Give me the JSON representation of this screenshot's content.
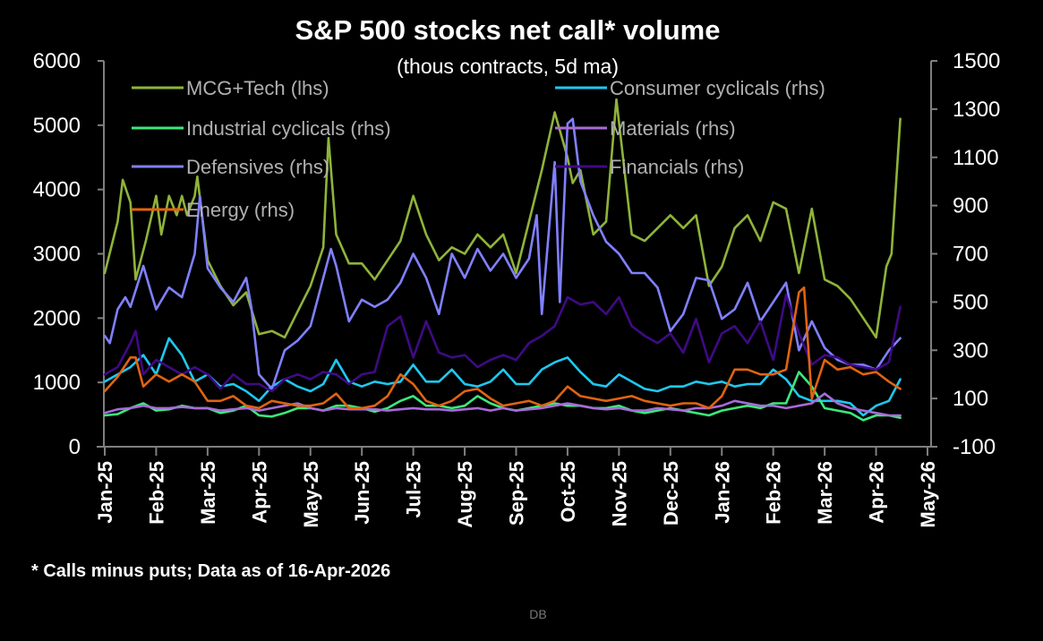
{
  "chart_data": {
    "type": "line",
    "title": "S&P 500 stocks net call* volume",
    "subtitle": "(thous contracts, 5d ma)",
    "footnote": "* Calls minus puts; Data as of 16-Apr-2026",
    "source": "DB",
    "x_unit": "months since Jan-25",
    "x_ticks": [
      "Jan-25",
      "Feb-25",
      "Mar-25",
      "Apr-25",
      "May-25",
      "Jun-25",
      "Jul-25",
      "Aug-25",
      "Sep-25",
      "Oct-25",
      "Nov-25",
      "Dec-25",
      "Jan-26",
      "Feb-26",
      "Mar-26",
      "Apr-26",
      "May-26"
    ],
    "xlim": [
      0,
      16
    ],
    "y_left": {
      "ylim": [
        0,
        6000
      ],
      "ticks": [
        "0",
        "1000",
        "2000",
        "3000",
        "4000",
        "5000",
        "6000"
      ],
      "tick_values": [
        0,
        1000,
        2000,
        3000,
        4000,
        5000,
        6000
      ]
    },
    "y_right": {
      "ylim": [
        -100,
        1500
      ],
      "ticks": [
        "-100",
        "100",
        "300",
        "500",
        "700",
        "900",
        "1100",
        "1300",
        "1500"
      ],
      "tick_values": [
        -100,
        100,
        300,
        500,
        700,
        900,
        1100,
        1300,
        1500
      ]
    },
    "grid": false,
    "legend_placement": "top-inside",
    "series": [
      {
        "name": "MCG+Tech (lhs)",
        "axis": "left",
        "color": "#8fb33a",
        "x": [
          0,
          0.25,
          0.35,
          0.5,
          0.6,
          0.8,
          1.0,
          1.1,
          1.25,
          1.4,
          1.5,
          1.6,
          1.75,
          1.8,
          2.0,
          2.25,
          2.5,
          2.75,
          3.0,
          3.25,
          3.5,
          3.75,
          4.0,
          4.25,
          4.35,
          4.5,
          4.75,
          5.0,
          5.25,
          5.5,
          5.75,
          6.0,
          6.25,
          6.5,
          6.75,
          7.0,
          7.25,
          7.5,
          7.75,
          8.0,
          8.25,
          8.5,
          8.75,
          9.0,
          9.1,
          9.25,
          9.5,
          9.75,
          9.95,
          10.25,
          10.5,
          10.75,
          11.0,
          11.25,
          11.5,
          11.75,
          12.0,
          12.25,
          12.5,
          12.75,
          13.0,
          13.25,
          13.5,
          13.75,
          14.0,
          14.25,
          14.5,
          14.75,
          15.0,
          15.2,
          15.3,
          15.47
        ],
        "values": [
          2700,
          3500,
          4150,
          3800,
          2600,
          3200,
          3900,
          3300,
          3900,
          3600,
          3900,
          3600,
          3900,
          4200,
          2900,
          2500,
          2200,
          2400,
          1750,
          1800,
          1700,
          2100,
          2500,
          3100,
          4800,
          3300,
          2850,
          2850,
          2600,
          2900,
          3200,
          3900,
          3300,
          2900,
          3100,
          3000,
          3300,
          3100,
          3300,
          2700,
          3500,
          4300,
          5200,
          4500,
          4100,
          4300,
          3300,
          3500,
          5400,
          3300,
          3200,
          3400,
          3600,
          3400,
          3600,
          2500,
          2800,
          3400,
          3600,
          3200,
          3800,
          3700,
          2700,
          3700,
          2600,
          2500,
          2300,
          2000,
          1700,
          2800,
          3000,
          5100
        ]
      },
      {
        "name": "Consumer cyclicals (rhs)",
        "axis": "right",
        "color": "#1ec8f0",
        "x": [
          0,
          0.25,
          0.5,
          0.75,
          1.0,
          1.25,
          1.5,
          1.75,
          2.0,
          2.25,
          2.5,
          2.75,
          3.0,
          3.25,
          3.5,
          3.75,
          4.0,
          4.25,
          4.5,
          4.75,
          5.0,
          5.25,
          5.5,
          5.75,
          6.0,
          6.25,
          6.5,
          6.75,
          7.0,
          7.25,
          7.5,
          7.75,
          8.0,
          8.25,
          8.5,
          8.75,
          9.0,
          9.25,
          9.5,
          9.75,
          10.0,
          10.25,
          10.5,
          10.75,
          11.0,
          11.25,
          11.5,
          11.75,
          12.0,
          12.25,
          12.5,
          12.75,
          13.0,
          13.25,
          13.5,
          13.75,
          14.0,
          14.25,
          14.5,
          14.75,
          15.0,
          15.25,
          15.47
        ],
        "values": [
          170,
          200,
          230,
          280,
          200,
          350,
          280,
          170,
          200,
          150,
          160,
          130,
          90,
          150,
          180,
          150,
          130,
          160,
          260,
          170,
          150,
          170,
          160,
          170,
          240,
          170,
          170,
          220,
          160,
          150,
          170,
          220,
          160,
          160,
          220,
          250,
          270,
          210,
          160,
          150,
          200,
          170,
          140,
          130,
          150,
          150,
          170,
          160,
          170,
          150,
          160,
          160,
          220,
          180,
          110,
          90,
          90,
          90,
          80,
          30,
          70,
          90,
          180
        ]
      },
      {
        "name": "Industrial cyclicals (rhs)",
        "axis": "right",
        "color": "#3ce87c",
        "x": [
          0,
          0.25,
          0.5,
          0.75,
          1.0,
          1.25,
          1.5,
          1.75,
          2.0,
          2.25,
          2.5,
          2.75,
          3.0,
          3.25,
          3.5,
          3.75,
          4.0,
          4.25,
          4.5,
          4.75,
          5.0,
          5.25,
          5.5,
          5.75,
          6.0,
          6.25,
          6.5,
          6.75,
          7.0,
          7.25,
          7.5,
          7.75,
          8.0,
          8.25,
          8.5,
          8.75,
          9.0,
          9.25,
          9.5,
          9.75,
          10.0,
          10.25,
          10.5,
          10.75,
          11.0,
          11.25,
          11.5,
          11.75,
          12.0,
          12.25,
          12.5,
          12.75,
          13.0,
          13.25,
          13.5,
          13.75,
          14.0,
          14.25,
          14.5,
          14.75,
          15.0,
          15.25,
          15.47
        ],
        "values": [
          30,
          35,
          60,
          80,
          50,
          55,
          70,
          60,
          60,
          40,
          50,
          70,
          30,
          25,
          40,
          60,
          60,
          50,
          70,
          70,
          60,
          45,
          60,
          90,
          110,
          70,
          70,
          60,
          70,
          110,
          80,
          60,
          50,
          60,
          70,
          80,
          70,
          70,
          60,
          60,
          70,
          50,
          40,
          50,
          60,
          50,
          40,
          30,
          50,
          60,
          70,
          60,
          80,
          80,
          210,
          150,
          60,
          50,
          40,
          10,
          30,
          30,
          20
        ]
      },
      {
        "name": "Materials (rhs)",
        "axis": "right",
        "color": "#a86bd8",
        "x": [
          0,
          0.25,
          0.5,
          0.75,
          1.0,
          1.25,
          1.5,
          1.75,
          2.0,
          2.25,
          2.5,
          2.75,
          3.0,
          3.25,
          3.5,
          3.75,
          4.0,
          4.25,
          4.5,
          4.75,
          5.0,
          5.25,
          5.5,
          5.75,
          6.0,
          6.25,
          6.5,
          6.75,
          7.0,
          7.25,
          7.5,
          7.75,
          8.0,
          8.25,
          8.5,
          8.75,
          9.0,
          9.25,
          9.5,
          9.75,
          10.0,
          10.25,
          10.5,
          10.75,
          11.0,
          11.25,
          11.5,
          11.75,
          12.0,
          12.25,
          12.5,
          12.75,
          13.0,
          13.25,
          13.5,
          13.75,
          14.0,
          14.25,
          14.5,
          14.75,
          15.0,
          15.25,
          15.47
        ],
        "values": [
          40,
          55,
          60,
          70,
          60,
          60,
          65,
          60,
          60,
          50,
          55,
          60,
          50,
          60,
          70,
          80,
          60,
          50,
          60,
          55,
          55,
          55,
          50,
          55,
          60,
          55,
          55,
          50,
          55,
          60,
          50,
          60,
          50,
          55,
          60,
          70,
          80,
          70,
          60,
          55,
          60,
          50,
          50,
          60,
          55,
          50,
          60,
          60,
          70,
          90,
          80,
          70,
          70,
          60,
          70,
          80,
          120,
          80,
          60,
          50,
          40,
          30,
          30
        ]
      },
      {
        "name": "Defensives (rhs)",
        "axis": "right",
        "color": "#8080ff",
        "x": [
          0,
          0.1,
          0.25,
          0.4,
          0.5,
          0.75,
          0.9,
          1.0,
          1.25,
          1.5,
          1.75,
          1.85,
          2.0,
          2.25,
          2.5,
          2.75,
          2.85,
          3.0,
          3.25,
          3.5,
          3.75,
          4.0,
          4.25,
          4.4,
          4.5,
          4.75,
          5.0,
          5.25,
          5.5,
          5.75,
          6.0,
          6.25,
          6.5,
          6.75,
          7.0,
          7.25,
          7.5,
          7.75,
          8.0,
          8.25,
          8.4,
          8.5,
          8.75,
          8.85,
          9.0,
          9.1,
          9.25,
          9.5,
          9.75,
          10.0,
          10.25,
          10.5,
          10.75,
          11.0,
          11.25,
          11.5,
          11.75,
          12.0,
          12.25,
          12.5,
          12.75,
          13.0,
          13.25,
          13.5,
          13.75,
          14.0,
          14.25,
          14.5,
          14.75,
          15.0,
          15.25,
          15.47
        ],
        "values": [
          360,
          330,
          470,
          520,
          480,
          650,
          540,
          470,
          560,
          520,
          700,
          940,
          640,
          560,
          500,
          600,
          480,
          200,
          140,
          300,
          340,
          400,
          600,
          720,
          650,
          420,
          510,
          480,
          510,
          580,
          700,
          600,
          450,
          700,
          600,
          720,
          630,
          700,
          600,
          680,
          860,
          450,
          1080,
          500,
          1240,
          1260,
          1000,
          860,
          750,
          700,
          620,
          620,
          560,
          380,
          450,
          600,
          590,
          430,
          470,
          580,
          420,
          500,
          580,
          300,
          420,
          310,
          260,
          240,
          240,
          220,
          300,
          350
        ]
      },
      {
        "name": "Financials (rhs)",
        "axis": "right",
        "color": "#3f0a85",
        "x": [
          0,
          0.25,
          0.5,
          0.6,
          0.75,
          1.0,
          1.25,
          1.5,
          1.75,
          2.0,
          2.25,
          2.5,
          2.75,
          3.0,
          3.25,
          3.5,
          3.75,
          4.0,
          4.25,
          4.5,
          4.75,
          5.0,
          5.25,
          5.5,
          5.75,
          6.0,
          6.25,
          6.5,
          6.75,
          7.0,
          7.25,
          7.5,
          7.75,
          8.0,
          8.25,
          8.5,
          8.75,
          9.0,
          9.25,
          9.5,
          9.75,
          10.0,
          10.25,
          10.5,
          10.75,
          11.0,
          11.25,
          11.5,
          11.75,
          12.0,
          12.25,
          12.5,
          12.75,
          13.0,
          13.25,
          13.5,
          13.75,
          14.0,
          14.25,
          14.5,
          14.75,
          15.0,
          15.25,
          15.47
        ],
        "values": [
          200,
          230,
          330,
          380,
          200,
          260,
          230,
          200,
          230,
          200,
          140,
          200,
          160,
          160,
          130,
          180,
          200,
          180,
          210,
          200,
          160,
          200,
          210,
          400,
          440,
          270,
          420,
          290,
          270,
          280,
          230,
          260,
          280,
          260,
          330,
          360,
          400,
          520,
          490,
          500,
          450,
          520,
          400,
          360,
          330,
          370,
          290,
          430,
          250,
          370,
          400,
          330,
          420,
          260,
          530,
          370,
          240,
          280,
          270,
          240,
          230,
          220,
          250,
          480
        ]
      },
      {
        "name": "Energy (rhs)",
        "axis": "right",
        "color": "#e06410",
        "x": [
          0,
          0.25,
          0.5,
          0.6,
          0.75,
          1.0,
          1.25,
          1.5,
          1.75,
          2.0,
          2.25,
          2.5,
          2.75,
          3.0,
          3.25,
          3.5,
          3.75,
          4.0,
          4.25,
          4.5,
          4.75,
          5.0,
          5.25,
          5.5,
          5.75,
          6.0,
          6.25,
          6.5,
          6.75,
          7.0,
          7.25,
          7.5,
          7.75,
          8.0,
          8.25,
          8.5,
          8.75,
          9.0,
          9.25,
          9.5,
          9.75,
          10.0,
          10.25,
          10.5,
          10.75,
          11.0,
          11.25,
          11.5,
          11.75,
          12.0,
          12.25,
          12.5,
          12.75,
          13.0,
          13.25,
          13.5,
          13.6,
          13.75,
          14.0,
          14.25,
          14.5,
          14.75,
          15.0,
          15.25,
          15.47
        ],
        "values": [
          130,
          190,
          270,
          270,
          150,
          200,
          170,
          200,
          170,
          90,
          90,
          110,
          70,
          60,
          90,
          80,
          70,
          70,
          80,
          120,
          60,
          60,
          70,
          110,
          200,
          160,
          90,
          70,
          90,
          130,
          140,
          100,
          70,
          80,
          90,
          70,
          90,
          150,
          110,
          100,
          90,
          100,
          110,
          90,
          80,
          70,
          80,
          80,
          60,
          110,
          220,
          220,
          200,
          200,
          220,
          540,
          560,
          100,
          260,
          220,
          230,
          200,
          210,
          170,
          140
        ]
      }
    ]
  }
}
